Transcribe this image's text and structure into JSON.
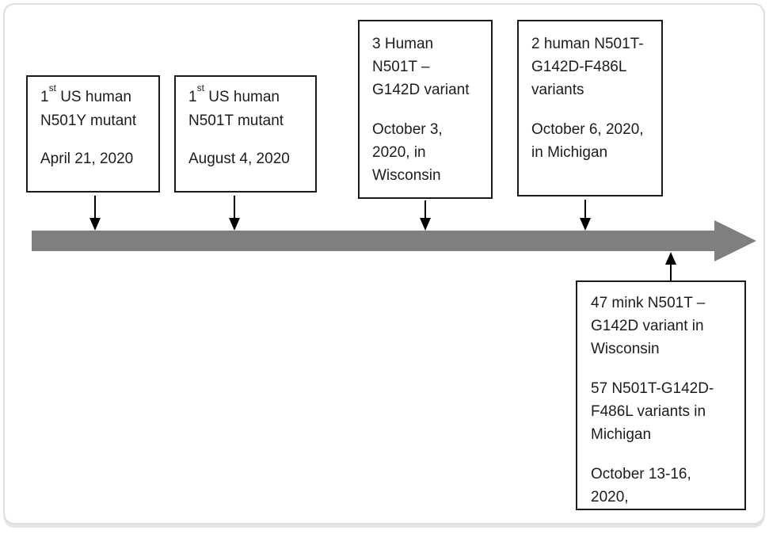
{
  "figure": {
    "type": "timeline-diagram",
    "subject": "SARS-CoV-2 N501 spike mutant detections in the US, 2020"
  },
  "palette": {
    "timeline_bar": "#7f7f7f",
    "box_border": "#1a1a1a",
    "connector": "#000000",
    "frame_border": "#dcdee1",
    "text": "#1c1c1c"
  },
  "events": [
    {
      "id": "first-us-n501y",
      "line1_num": "1",
      "line1_sup": "st",
      "line1_rest": " US human",
      "line2": "N501Y mutant",
      "date": "April 21, 2020"
    },
    {
      "id": "first-us-n501t",
      "line1_num": "1",
      "line1_sup": "st",
      "line1_rest": " US human",
      "line2": "N501T mutant",
      "date": "August 4, 2020"
    },
    {
      "id": "human-n501t-g142d",
      "lines": [
        "3 Human",
        "N501T –",
        "G142D variant"
      ],
      "date_lines": [
        "October 3,",
        "2020, in",
        "Wisconsin"
      ]
    },
    {
      "id": "human-n501t-g142d-f486l",
      "lines": [
        "2 human N501T-",
        "G142D-F486L",
        "variants"
      ],
      "date_lines": [
        "October 6, 2020,",
        "in Michigan"
      ]
    },
    {
      "id": "mink-and-human-variants",
      "para1": [
        "47 mink N501T –",
        "G142D variant in",
        "Wisconsin"
      ],
      "para2": [
        "57 N501T-G142D-",
        "F486L variants in",
        "Michigan"
      ],
      "para3": [
        "October 13-16,",
        "2020,"
      ]
    }
  ]
}
